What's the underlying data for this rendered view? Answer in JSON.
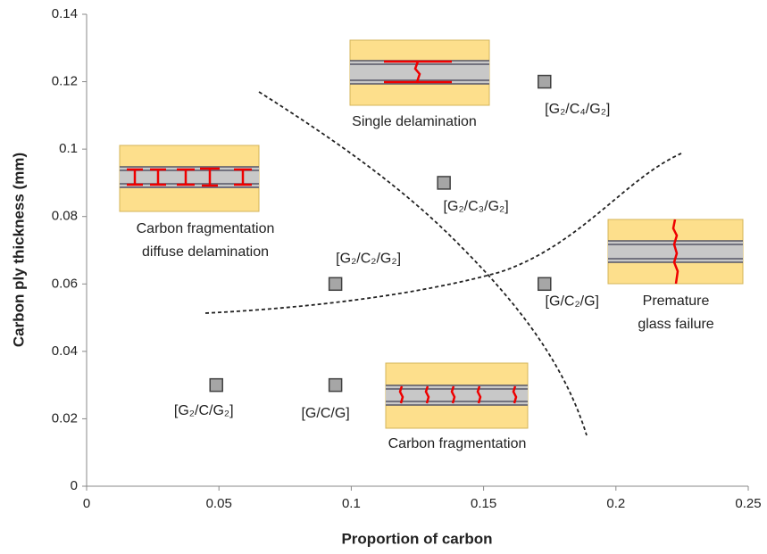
{
  "chart_data": {
    "type": "scatter",
    "x_label": "Proportion of carbon",
    "y_label": "Carbon ply thickness (mm)",
    "x": [
      0.049,
      0.094,
      0.094,
      0.135,
      0.173,
      0.173
    ],
    "values": [
      0.03,
      0.03,
      0.06,
      0.09,
      0.06,
      0.12
    ],
    "point_labels": [
      "[G₂/C/G₂]",
      "[G/C/G]",
      "[G₂/C₂/G₂]",
      "[G₂/C₃/G₂]",
      "[G/C₂/G]",
      "[G₂/C₄/G₂]"
    ],
    "color": "#a6a6a6",
    "xlim": [
      0,
      0.25
    ],
    "xticks": [
      0,
      0.05,
      0.1,
      0.15,
      0.2,
      0.25
    ],
    "ylim": [
      0,
      0.14
    ],
    "yticks": [
      0,
      0.02,
      0.04,
      0.06,
      0.08,
      0.1,
      0.12,
      0.14
    ],
    "annotations": [
      {
        "lines": [
          "Single delamination"
        ]
      },
      {
        "lines": [
          "Carbon fragmentation",
          "diffuse delamination"
        ]
      },
      {
        "lines": [
          "Premature",
          "glass failure"
        ]
      },
      {
        "lines": [
          "Carbon fragmentation"
        ]
      }
    ]
  }
}
